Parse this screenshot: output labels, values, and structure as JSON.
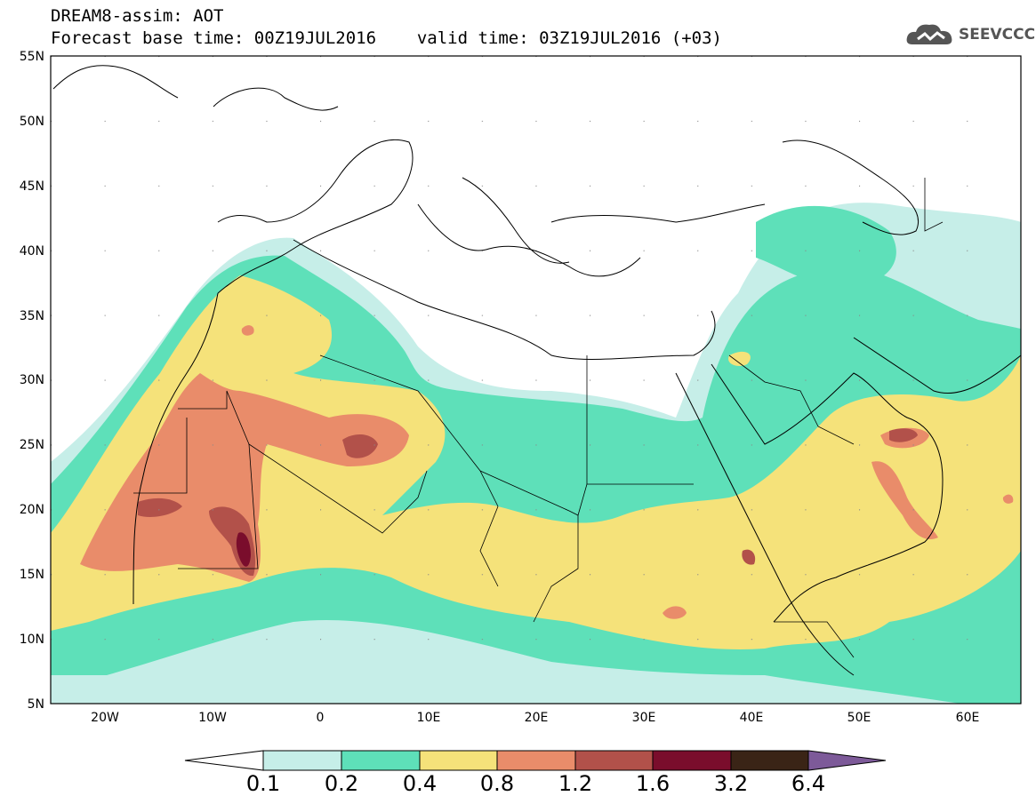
{
  "header": {
    "title": "DREAM8-assim: AOT",
    "base_time": "Forecast base time: 00Z19JUL2016",
    "valid_time": "valid time: 03Z19JUL2016 (+03)",
    "logo_text": "SEEVCCC"
  },
  "map": {
    "lon_range": [
      -25,
      65
    ],
    "lat_range": [
      5,
      55
    ],
    "lat_labels": [
      "55N",
      "50N",
      "45N",
      "40N",
      "35N",
      "30N",
      "25N",
      "20N",
      "15N",
      "10N",
      "5N"
    ],
    "lon_labels": [
      "20W",
      "10W",
      "0",
      "10E",
      "20E",
      "30E",
      "40E",
      "50E",
      "60E"
    ]
  },
  "colorbar": {
    "labels": [
      "0.1",
      "0.2",
      "0.4",
      "0.8",
      "1.2",
      "1.6",
      "3.2",
      "6.4"
    ],
    "colors": [
      "#ffffff",
      "#c6eee8",
      "#5ee0b9",
      "#f5e27a",
      "#e98c6a",
      "#b2514a",
      "#7a0d2c",
      "#3a2416",
      "#7d5a99"
    ]
  }
}
